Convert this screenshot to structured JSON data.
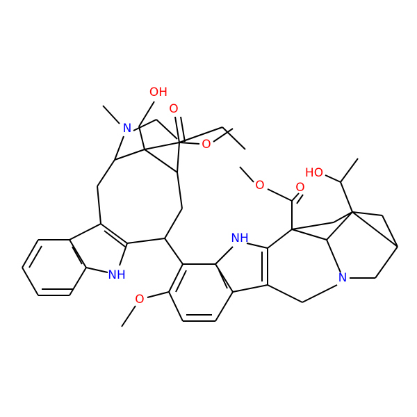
{
  "atoms": [
    "OH",
    "N",
    "O",
    "O",
    "O",
    "HO",
    "O",
    "NH",
    "N",
    "NH",
    "O"
  ]
}
